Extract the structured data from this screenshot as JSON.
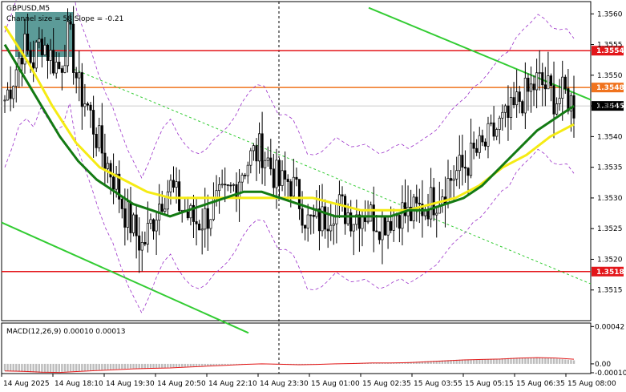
{
  "header": {
    "symbol": "GBPUSD,M5",
    "indicator_note": "Channel size = 58 Slope = -0.21"
  },
  "macd_panel": {
    "label": "MACD(12,26,9) 0.00010 0.00013"
  },
  "colors": {
    "background": "#ffffff",
    "candles": "#000000",
    "ma_slow": "#f5eb14",
    "ma_fast": "#137a13",
    "bands": "#9b2fc9",
    "channel": "#33cc33",
    "level_red": "#e3161a",
    "level_orange": "#f0731e",
    "macd_hist": "#bdbdbd",
    "macd_signal": "#e31a1a",
    "shaded_zone": "#3f8a86"
  },
  "chart_data": {
    "type": "candlestick",
    "title": "GBPUSD,M5",
    "ylim": [
      1.351,
      1.3562
    ],
    "y_ticks": [
      "1.3560",
      "1.3555",
      "1.3550",
      "1.3545",
      "1.3540",
      "1.3535",
      "1.3530",
      "1.3525",
      "1.3520",
      "1.3515"
    ],
    "x_labels": [
      "14 Aug 2025",
      "14 Aug 18:10",
      "14 Aug 19:30",
      "14 Aug 20:50",
      "14 Aug 22:10",
      "14 Aug 23:30",
      "15 Aug 01:00",
      "15 Aug 02:35",
      "15 Aug 03:55",
      "15 Aug 05:15",
      "15 Aug 06:35",
      "15 Aug 08:00"
    ],
    "close_path": [
      1.3546,
      1.355,
      1.3555,
      1.3552,
      1.3556,
      1.3553,
      1.3551,
      1.3557,
      1.3548,
      1.3545,
      1.354,
      1.3536,
      1.3533,
      1.3528,
      1.3525,
      1.3522,
      1.3526,
      1.353,
      1.3532,
      1.3529,
      1.3527,
      1.3526,
      1.3527,
      1.3529,
      1.353,
      1.3532,
      1.3535,
      1.3537,
      1.3538,
      1.3535,
      1.3532,
      1.3533,
      1.353,
      1.3526,
      1.3526,
      1.3527,
      1.3529,
      1.3528,
      1.3527,
      1.3528,
      1.3527,
      1.3526,
      1.3527,
      1.3528,
      1.3527,
      1.3528,
      1.3529,
      1.353,
      1.3532,
      1.3534,
      1.3535,
      1.3537,
      1.3538,
      1.354,
      1.3542,
      1.3543,
      1.3546,
      1.3547,
      1.3549,
      1.3548,
      1.3546,
      1.3547,
      1.3545
    ],
    "ma_fast": [
      1.3555,
      1.355,
      1.3545,
      1.354,
      1.3536,
      1.3533,
      1.3531,
      1.3529,
      1.3528,
      1.3527,
      1.3528,
      1.3529,
      1.353,
      1.3531,
      1.3531,
      1.353,
      1.3529,
      1.3528,
      1.3527,
      1.3527,
      1.3527,
      1.3527,
      1.3528,
      1.3528,
      1.3529,
      1.353,
      1.3532,
      1.3535,
      1.3538,
      1.3541,
      1.3543,
      1.3545
    ],
    "ma_slow": [
      1.3558,
      1.3552,
      1.3545,
      1.3539,
      1.3535,
      1.3533,
      1.3531,
      1.353,
      1.353,
      1.353,
      1.353,
      1.353,
      1.353,
      1.353,
      1.3529,
      1.3528,
      1.3528,
      1.3528,
      1.3529,
      1.353,
      1.3532,
      1.3535,
      1.3537,
      1.354,
      1.3542
    ],
    "levels": [
      {
        "label": "1.3554",
        "value": 1.3554,
        "color": "#e3161a"
      },
      {
        "label": "1.3548",
        "value": 1.3548,
        "color": "#f0731e"
      },
      {
        "label": "1.3545",
        "value": 1.3545,
        "color": "#000000"
      },
      {
        "label": "1.3518",
        "value": 1.3518,
        "color": "#e3161a"
      }
    ],
    "macd": {
      "ylim": [
        -0.0001,
        0.00045
      ],
      "y_ticks": [
        "0.00042",
        "0.00",
        "-0.00010"
      ],
      "histogram": [
        -8e-05,
        -9e-05,
        -0.0001,
        -9e-05,
        -8e-05,
        -7e-05,
        -6e-05,
        -5e-05,
        -5e-05,
        -4e-05,
        -3e-05,
        -2e-05,
        -1e-05,
        0.0,
        0.0,
        -1e-05,
        -1e-05,
        0.0,
        0.0,
        1e-05,
        1e-05,
        1e-05,
        2e-05,
        3e-05,
        4e-05,
        5e-05,
        5e-05,
        6e-05,
        7e-05,
        7e-05,
        6e-05,
        4e-05
      ]
    }
  }
}
